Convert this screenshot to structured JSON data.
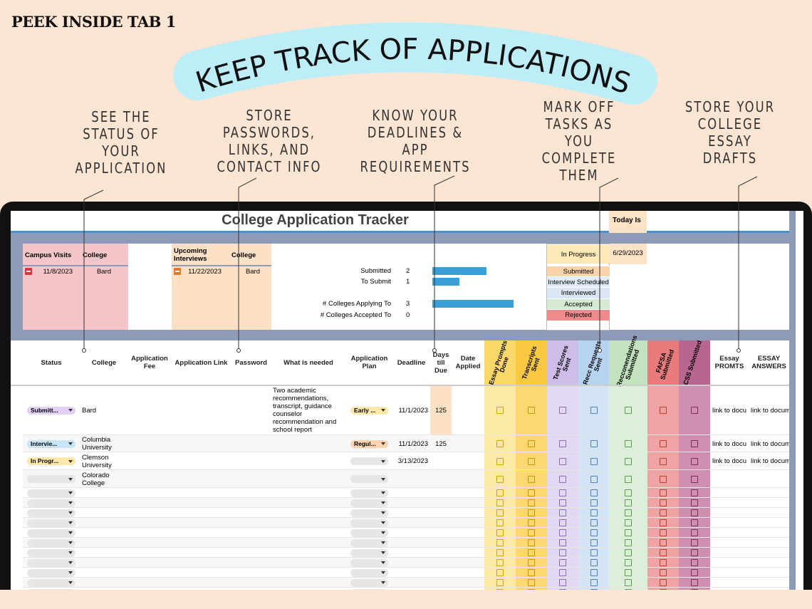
{
  "header": {
    "tab_label": "PEEK INSIDE TAB 1",
    "banner": "KEEP TRACK OF APPLICATIONS"
  },
  "callouts": [
    [
      "SEE THE",
      "STATUS OF",
      "YOUR",
      "APPLICATION"
    ],
    [
      "STORE",
      "PASSWORDS,",
      "LINKS, AND",
      "CONTACT INFO"
    ],
    [
      "KNOW YOUR",
      "DEADLINES &",
      "APP",
      "REQUIREMENTS"
    ],
    [
      "MARK OFF",
      "TASKS AS",
      "YOU",
      "COMPLETE",
      "THEM"
    ],
    [
      "STORE YOUR",
      "COLLEGE",
      "ESSAY",
      "DRAFTS"
    ]
  ],
  "sheet": {
    "title": "College Application Tracker",
    "today_label": "Today Is",
    "today": "6/29/2023",
    "campus_visits": {
      "headers": [
        "Campus Visits",
        "College"
      ],
      "rows": [
        [
          "11/8/2023",
          "Bard"
        ]
      ]
    },
    "interviews": {
      "headers": [
        "Upcoming Interviews",
        "College"
      ],
      "rows": [
        [
          "11/22/2023",
          "Bard"
        ]
      ]
    },
    "summary": [
      {
        "label": "Submitted",
        "value": 2
      },
      {
        "label": "To Submit",
        "value": 1
      },
      {
        "label": "# Colleges Applying To",
        "value": 3
      },
      {
        "label": "# Colleges Accepted To",
        "value": 0
      }
    ],
    "status_legend": [
      "In Progress",
      "Submitted",
      "Interview Scheduled",
      "Interviewed",
      "Accepted",
      "Rejected"
    ],
    "columns": [
      "Status",
      "College",
      "Application Fee",
      "Application Link",
      "Password",
      "What is needed",
      "Application Plan",
      "Deadline",
      "Days till Due",
      "Date Applied",
      "Essay Prompts Done",
      "Transcripts Sent",
      "Test Scores Sent",
      "Recc Requests Sent",
      "Recconendations Submitted",
      "FAFSA Submitted",
      "CSS Submitted",
      "Essay PROMTS",
      "ESSAY ANSWERS"
    ],
    "rows": [
      {
        "status": "Submitt...",
        "college": "Bard",
        "needed": "Two academic recommendations, transcript, guidance counselor recommendation and school report",
        "plan": "Early ...",
        "deadline": "11/1/2023",
        "days_till_due": 125,
        "essay_prompts": "link to docu",
        "essay_answers": "link to docume"
      },
      {
        "status": "Intervie...",
        "college": "Columbia University",
        "plan": "Regul...",
        "deadline": "11/1/2023",
        "days_till_due": 125,
        "essay_prompts": "link to docu",
        "essay_answers": "link to docume"
      },
      {
        "status": "In Progr...",
        "college": "Clemson University",
        "deadline": "3/13/2023",
        "essay_prompts": "link to docu",
        "essay_answers": "link to docume"
      },
      {
        "college": "Colorado College"
      }
    ]
  }
}
